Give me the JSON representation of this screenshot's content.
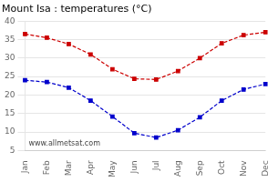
{
  "chart_data": {
    "type": "line",
    "title": "Mount Isa : temperatures (°C)",
    "categories": [
      "Jan",
      "Feb",
      "Mar",
      "Apr",
      "May",
      "Jun",
      "Jul",
      "Aug",
      "Sep",
      "Oct",
      "Nov",
      "Dec"
    ],
    "series": [
      {
        "color": "#cc0000",
        "marker": "square",
        "line_style": "dashed",
        "values": [
          36.5,
          35.5,
          33.8,
          31.0,
          27.0,
          24.4,
          24.2,
          26.5,
          30.0,
          34.0,
          36.2,
          37.0
        ]
      },
      {
        "color": "#0000cc",
        "marker": "square",
        "line_style": "dashed",
        "values": [
          24.0,
          23.5,
          22.0,
          18.5,
          14.2,
          9.7,
          8.5,
          10.5,
          14.0,
          18.5,
          21.5,
          23.0
        ]
      }
    ],
    "ylim": [
      5,
      40
    ],
    "yticks": [
      5,
      10,
      15,
      20,
      25,
      30,
      35,
      40
    ],
    "grid": "y",
    "annotations": [
      "www.allmetsat.com"
    ]
  }
}
